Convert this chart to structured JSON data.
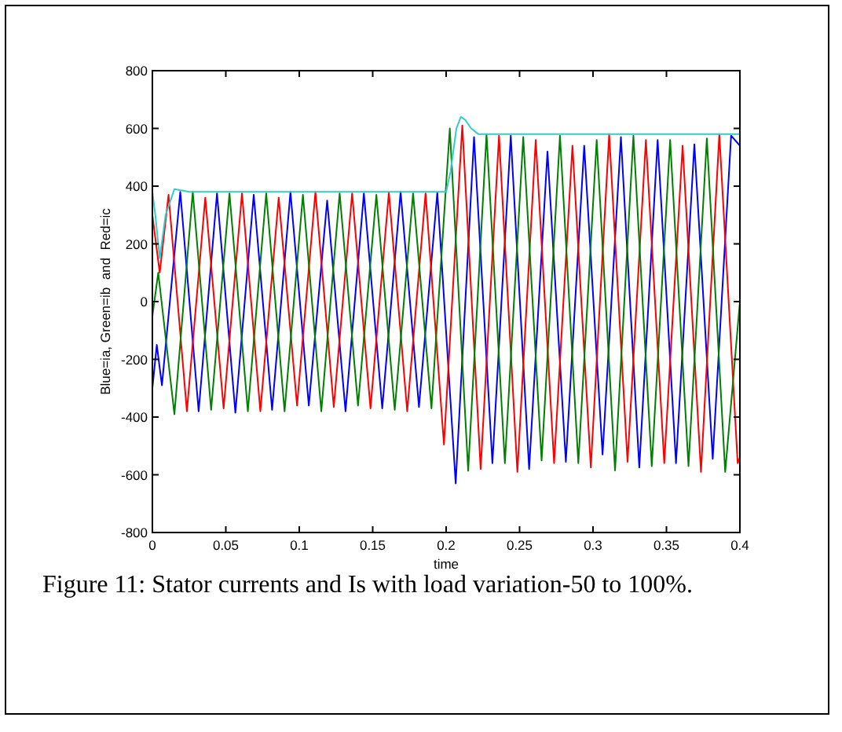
{
  "chart_data": {
    "type": "line",
    "xlabel": "time",
    "ylabel": "Blue=ia, Green=ib  and  Red=ic",
    "xlim": [
      0,
      0.4
    ],
    "xticks": [
      0,
      0.05,
      0.1,
      0.15,
      0.2,
      0.25,
      0.3,
      0.35,
      0.4
    ],
    "ylim": [
      -800,
      800
    ],
    "yticks": [
      -800,
      -600,
      -400,
      -200,
      0,
      200,
      400,
      600,
      800
    ],
    "marker": "none",
    "line_style": "solid",
    "annotations": [
      "Figure 11: Stator currents and Is with load variation-50 to 100%."
    ],
    "series": [
      {
        "color": "#0000ff",
        "x": [
          0,
          0.003,
          0.0065,
          0.019,
          0.0315,
          0.044,
          0.0565,
          0.069,
          0.0815,
          0.094,
          0.1065,
          0.119,
          0.1315,
          0.144,
          0.1565,
          0.169,
          0.1815,
          0.194,
          0.2065,
          0.219,
          0.2315,
          0.244,
          0.2565,
          0.269,
          0.2815,
          0.294,
          0.3065,
          0.319,
          0.3315,
          0.344,
          0.3565,
          0.369,
          0.3815,
          0.394,
          0.4
        ],
        "values": [
          -300,
          -150,
          -290,
          380,
          -380,
          375,
          -385,
          370,
          -375,
          380,
          -360,
          350,
          -380,
          375,
          -370,
          380,
          -365,
          378,
          -630,
          570,
          -560,
          575,
          -580,
          520,
          -555,
          540,
          -530,
          570,
          -575,
          560,
          -560,
          545,
          -545,
          575,
          540
        ]
      },
      {
        "color": "#ff0000",
        "x": [
          0,
          0.005,
          0.011,
          0.0235,
          0.036,
          0.0485,
          0.061,
          0.0735,
          0.086,
          0.0985,
          0.111,
          0.1235,
          0.136,
          0.1485,
          0.161,
          0.1735,
          0.186,
          0.1985,
          0.211,
          0.2235,
          0.236,
          0.2485,
          0.261,
          0.2735,
          0.286,
          0.2985,
          0.311,
          0.3235,
          0.336,
          0.3485,
          0.361,
          0.3735,
          0.386,
          0.3985,
          0.4
        ],
        "values": [
          300,
          100,
          370,
          -380,
          360,
          -370,
          375,
          -380,
          360,
          -360,
          380,
          -365,
          375,
          -370,
          378,
          -380,
          375,
          -495,
          610,
          -580,
          575,
          -590,
          560,
          -560,
          540,
          -575,
          580,
          -555,
          560,
          -560,
          540,
          -590,
          580,
          -560,
          -540
        ]
      },
      {
        "color": "#008000",
        "x": [
          0,
          0.004,
          0.015,
          0.0275,
          0.04,
          0.0525,
          0.065,
          0.0775,
          0.09,
          0.1025,
          0.115,
          0.1275,
          0.14,
          0.1525,
          0.165,
          0.1775,
          0.19,
          0.2025,
          0.215,
          0.2275,
          0.24,
          0.2525,
          0.265,
          0.2775,
          0.29,
          0.3025,
          0.315,
          0.3275,
          0.34,
          0.3525,
          0.365,
          0.3775,
          0.39,
          0.4
        ],
        "values": [
          -50,
          100,
          -390,
          380,
          -375,
          375,
          -380,
          375,
          -380,
          370,
          -380,
          375,
          -360,
          370,
          -375,
          375,
          -370,
          600,
          -586,
          580,
          -560,
          570,
          -550,
          575,
          -560,
          560,
          -585,
          575,
          -570,
          560,
          -570,
          565,
          -590,
          0
        ]
      },
      {
        "color": "#33cccc",
        "x": [
          0,
          0.002,
          0.005,
          0.009,
          0.015,
          0.02,
          0.025,
          0.2,
          0.203,
          0.207,
          0.21,
          0.213,
          0.217,
          0.222,
          0.4
        ],
        "values": [
          380,
          300,
          150,
          300,
          390,
          385,
          380,
          380,
          450,
          600,
          640,
          630,
          600,
          580,
          580
        ]
      }
    ]
  }
}
